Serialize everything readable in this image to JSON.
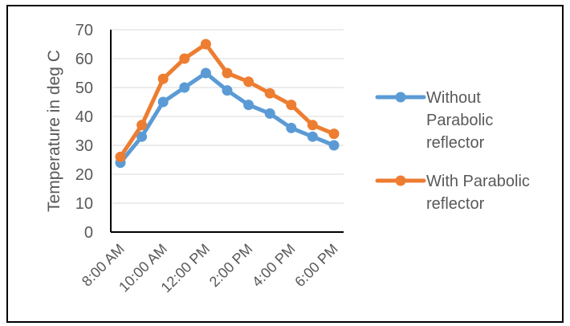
{
  "chart_data": {
    "type": "line",
    "categories": [
      "8:00 AM",
      "9:00 AM",
      "10:00 AM",
      "11:00 AM",
      "12:00 PM",
      "1:00 PM",
      "2:00 PM",
      "3:00 PM",
      "4:00 PM",
      "5:00 PM",
      "6:00 PM"
    ],
    "x_tick_labels_shown": [
      "8:00 AM",
      "10:00 AM",
      "12:00 PM",
      "2:00 PM",
      "4:00 PM",
      "6:00 PM"
    ],
    "ylabel": "Temperature in deg C",
    "xlabel": "",
    "ylim": [
      0,
      70
    ],
    "y_ticks": [
      0,
      10,
      20,
      30,
      40,
      50,
      60,
      70
    ],
    "grid": "horizontal",
    "legend_position": "right",
    "series": [
      {
        "name": "Without Parabolic reflector",
        "legend_lines": [
          "Without",
          "Parabolic",
          "reflector"
        ],
        "color": "#5B9BD5",
        "values": [
          24,
          33,
          45,
          50,
          55,
          49,
          44,
          41,
          36,
          33,
          30
        ]
      },
      {
        "name": "With Parabolic reflector",
        "legend_lines": [
          "With Parabolic",
          "reflector"
        ],
        "color": "#ED7D31",
        "values": [
          26,
          37,
          53,
          60,
          65,
          55,
          52,
          48,
          44,
          37,
          34
        ]
      }
    ]
  }
}
